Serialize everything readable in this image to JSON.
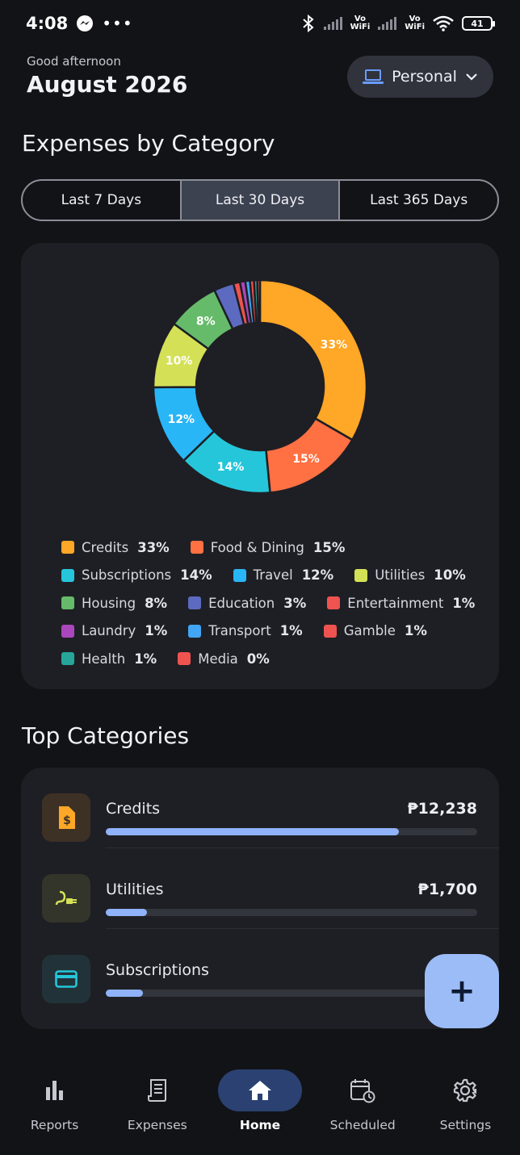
{
  "status_bar": {
    "time": "4:08",
    "more": "•••",
    "vo_wifi_1": "Vo\nWiFi",
    "vo_wifi_2": "Vo\nWiFi",
    "battery": "41"
  },
  "header": {
    "greeting": "Good afternoon",
    "month": "August 2026",
    "profile_label": "Personal"
  },
  "expenses": {
    "title": "Expenses by Category",
    "ranges": [
      "Last 7 Days",
      "Last 30 Days",
      "Last 365 Days"
    ],
    "active_range": "Last 30 Days"
  },
  "chart_data": {
    "type": "pie",
    "variant": "donut",
    "categories": [
      "Credits",
      "Food & Dining",
      "Subscriptions",
      "Travel",
      "Utilities",
      "Housing",
      "Education",
      "Entertainment",
      "Laundry",
      "Transport",
      "Gamble",
      "Health",
      "Media"
    ],
    "values": [
      33,
      15,
      14,
      12,
      10,
      8,
      3,
      1,
      1,
      1,
      1,
      1,
      0
    ],
    "slice_values": [
      33.2,
      15.1,
      14.2,
      12.1,
      10.1,
      7.9,
      3.0,
      1.0,
      0.8,
      0.7,
      0.6,
      0.5,
      0.4
    ],
    "colors": [
      "#ffa726",
      "#ff7043",
      "#26c6da",
      "#29b6f6",
      "#d4e157",
      "#66bb6a",
      "#5c6bc0",
      "#ef5350",
      "#ab47bc",
      "#42a5f5",
      "#ef5350",
      "#26a69a",
      "#ef5350"
    ],
    "labeled_slices": [
      "33%",
      "15%",
      "14%",
      "12%",
      "10%",
      "8%"
    ],
    "legend": [
      {
        "name": "Credits",
        "pct": "33%"
      },
      {
        "name": "Food & Dining",
        "pct": "15%"
      },
      {
        "name": "Subscriptions",
        "pct": "14%"
      },
      {
        "name": "Travel",
        "pct": "12%"
      },
      {
        "name": "Utilities",
        "pct": "10%"
      },
      {
        "name": "Housing",
        "pct": "8%"
      },
      {
        "name": "Education",
        "pct": "3%"
      },
      {
        "name": "Entertainment",
        "pct": "1%"
      },
      {
        "name": "Laundry",
        "pct": "1%"
      },
      {
        "name": "Transport",
        "pct": "1%"
      },
      {
        "name": "Gamble",
        "pct": "1%"
      },
      {
        "name": "Health",
        "pct": "1%"
      },
      {
        "name": "Media",
        "pct": "0%"
      }
    ]
  },
  "top_categories": {
    "title": "Top Categories",
    "items": [
      {
        "name": "Credits",
        "amount": "₱12,238",
        "fraction": 0.79,
        "icon": "document-dollar-icon",
        "icon_color": "#ffa726",
        "icon_bg": "#3d3125"
      },
      {
        "name": "Utilities",
        "amount": "₱1,700",
        "fraction": 0.11,
        "icon": "power-plug-icon",
        "icon_color": "#d4e157",
        "icon_bg": "#33352a"
      },
      {
        "name": "Subscriptions",
        "amount": "",
        "fraction": 0.1,
        "icon": "credit-card-icon",
        "icon_color": "#26c6da",
        "icon_bg": "#213339"
      }
    ]
  },
  "fab": {
    "label": "+"
  },
  "nav": {
    "items": [
      {
        "label": "Reports",
        "icon": "bar-chart-icon"
      },
      {
        "label": "Expenses",
        "icon": "receipt-icon"
      },
      {
        "label": "Home",
        "icon": "home-icon"
      },
      {
        "label": "Scheduled",
        "icon": "calendar-repeat-icon"
      },
      {
        "label": "Settings",
        "icon": "gear-icon"
      }
    ],
    "active": "Home"
  }
}
